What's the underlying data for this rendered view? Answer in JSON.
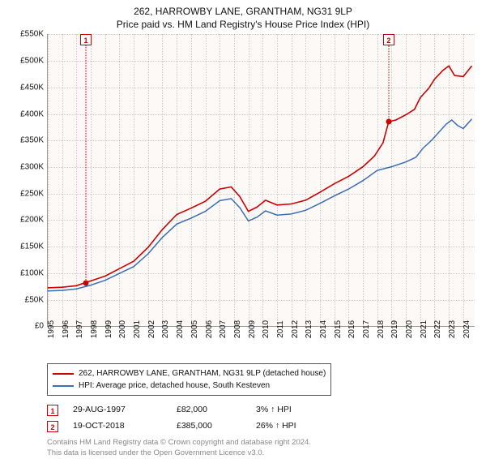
{
  "title_line1": "262, HARROWBY LANE, GRANTHAM, NG31 9LP",
  "title_line2": "Price paid vs. HM Land Registry's House Price Index (HPI)",
  "chart": {
    "type": "line",
    "background_color": "#fcf9f6",
    "grid_color": "rgba(0,0,0,0.18)",
    "axis_color": "#999999",
    "y": {
      "min": 0,
      "max": 550000,
      "step": 50000,
      "ticks": [
        "£0",
        "£50K",
        "£100K",
        "£150K",
        "£200K",
        "£250K",
        "£300K",
        "£350K",
        "£400K",
        "£450K",
        "£500K",
        "£550K"
      ]
    },
    "x": {
      "min": 1995,
      "max": 2024.8,
      "ticks": [
        "1995",
        "1996",
        "1997",
        "1998",
        "1999",
        "2000",
        "2001",
        "2002",
        "2003",
        "2004",
        "2005",
        "2006",
        "2007",
        "2008",
        "2009",
        "2010",
        "2011",
        "2012",
        "2013",
        "2014",
        "2015",
        "2016",
        "2017",
        "2018",
        "2019",
        "2020",
        "2021",
        "2022",
        "2023",
        "2024"
      ]
    },
    "series": [
      {
        "key": "price_paid",
        "label": "262, HARROWBY LANE, GRANTHAM, NG31 9LP (detached house)",
        "color": "#cc0000",
        "line_width": 1.6,
        "points": [
          [
            1995.0,
            72000
          ],
          [
            1996.0,
            73000
          ],
          [
            1997.0,
            76000
          ],
          [
            1997.66,
            82000
          ],
          [
            1998.0,
            85000
          ],
          [
            1999.0,
            94000
          ],
          [
            2000.0,
            108000
          ],
          [
            2001.0,
            122000
          ],
          [
            2002.0,
            148000
          ],
          [
            2003.0,
            182000
          ],
          [
            2004.0,
            210000
          ],
          [
            2005.0,
            222000
          ],
          [
            2006.0,
            235000
          ],
          [
            2007.0,
            258000
          ],
          [
            2007.8,
            262000
          ],
          [
            2008.4,
            244000
          ],
          [
            2009.0,
            216000
          ],
          [
            2009.6,
            224000
          ],
          [
            2010.2,
            237000
          ],
          [
            2011.0,
            228000
          ],
          [
            2012.0,
            230000
          ],
          [
            2013.0,
            237000
          ],
          [
            2014.0,
            252000
          ],
          [
            2015.0,
            268000
          ],
          [
            2016.0,
            282000
          ],
          [
            2017.0,
            300000
          ],
          [
            2017.8,
            320000
          ],
          [
            2018.4,
            345000
          ],
          [
            2018.8,
            385000
          ],
          [
            2019.3,
            388000
          ],
          [
            2020.0,
            398000
          ],
          [
            2020.6,
            408000
          ],
          [
            2021.0,
            430000
          ],
          [
            2021.6,
            448000
          ],
          [
            2022.0,
            465000
          ],
          [
            2022.6,
            482000
          ],
          [
            2023.0,
            490000
          ],
          [
            2023.4,
            472000
          ],
          [
            2024.0,
            470000
          ],
          [
            2024.6,
            490000
          ]
        ]
      },
      {
        "key": "hpi",
        "label": "HPI: Average price, detached house, South Kesteven",
        "color": "#3a6fb7",
        "line_width": 1.5,
        "points": [
          [
            1995.0,
            66000
          ],
          [
            1996.0,
            67000
          ],
          [
            1997.0,
            70000
          ],
          [
            1998.0,
            77000
          ],
          [
            1999.0,
            86000
          ],
          [
            2000.0,
            99000
          ],
          [
            2001.0,
            112000
          ],
          [
            2002.0,
            136000
          ],
          [
            2003.0,
            167000
          ],
          [
            2004.0,
            192000
          ],
          [
            2005.0,
            203000
          ],
          [
            2006.0,
            216000
          ],
          [
            2007.0,
            236000
          ],
          [
            2007.8,
            240000
          ],
          [
            2008.4,
            223000
          ],
          [
            2009.0,
            198000
          ],
          [
            2009.6,
            205000
          ],
          [
            2010.2,
            217000
          ],
          [
            2011.0,
            209000
          ],
          [
            2012.0,
            211000
          ],
          [
            2013.0,
            218000
          ],
          [
            2014.0,
            231000
          ],
          [
            2015.0,
            245000
          ],
          [
            2016.0,
            258000
          ],
          [
            2017.0,
            274000
          ],
          [
            2018.0,
            293000
          ],
          [
            2019.0,
            300000
          ],
          [
            2020.0,
            309000
          ],
          [
            2020.7,
            318000
          ],
          [
            2021.2,
            335000
          ],
          [
            2021.8,
            350000
          ],
          [
            2022.3,
            365000
          ],
          [
            2022.8,
            380000
          ],
          [
            2023.2,
            388000
          ],
          [
            2023.6,
            378000
          ],
          [
            2024.0,
            372000
          ],
          [
            2024.6,
            390000
          ]
        ]
      }
    ],
    "sale_markers": [
      {
        "n": "1",
        "x": 1997.66,
        "y": 82000
      },
      {
        "n": "2",
        "x": 2018.8,
        "y": 385000
      }
    ]
  },
  "legend_marker_color": "#cc0000",
  "sales": [
    {
      "n": "1",
      "date": "29-AUG-1997",
      "price": "£82,000",
      "hpi": "3% ↑ HPI"
    },
    {
      "n": "2",
      "date": "19-OCT-2018",
      "price": "£385,000",
      "hpi": "26% ↑ HPI"
    }
  ],
  "attribution_line1": "Contains HM Land Registry data © Crown copyright and database right 2024.",
  "attribution_line2": "This data is licensed under the Open Government Licence v3.0."
}
